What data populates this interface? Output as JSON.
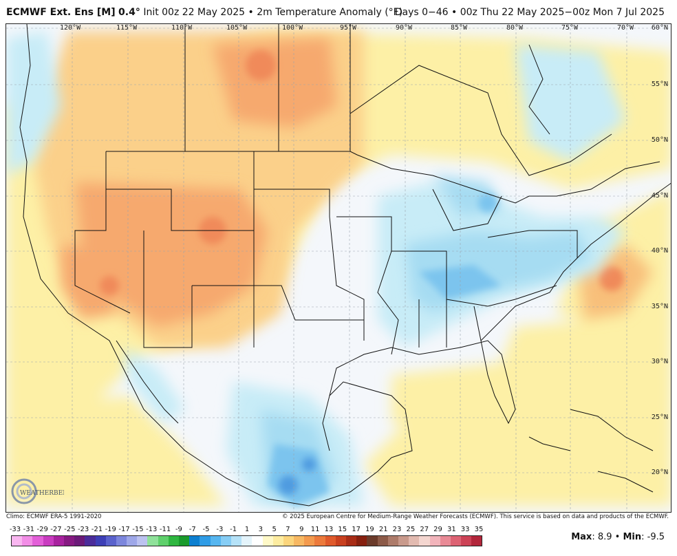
{
  "header": {
    "model": "ECMWF Ext. Ens [M]",
    "resolution": "0.4°",
    "init": "Init 00z 22 May 2025",
    "separator": "•",
    "field": "2m Temperature Anomaly (°F)",
    "range": "Days 0−46 • 00z Thu 22 May 2025−00z Mon 7 Jul 2025"
  },
  "map": {
    "longitude_labels": [
      "120°W",
      "115°W",
      "110°W",
      "105°W",
      "100°W",
      "95°W",
      "90°W",
      "85°W",
      "80°W",
      "75°W",
      "70°W"
    ],
    "latitude_labels": [
      "60°N",
      "55°N",
      "50°N",
      "45°N",
      "40°N",
      "35°N",
      "30°N",
      "25°N",
      "20°N"
    ],
    "logo_text": "WEATHERBELL",
    "colors": {
      "warm_light": "#fdf0a6",
      "warm_mid": "#fbd08a",
      "warm_strong": "#f6a96e",
      "warm_deep": "#f08a5a",
      "cool_light": "#c8ecf7",
      "cool_mid": "#a6dcf2",
      "cool_strong": "#7cc4ee",
      "cool_deep": "#4f9be0",
      "neutral": "#f4f7fb",
      "border": "#111111"
    }
  },
  "footer": {
    "climo": "Climo: ECMWF ERA-5 1991-2020",
    "copyright": "© 2025 European Centre for Medium-Range Weather Forecasts (ECMWF). This service is based on data and products of the ECMWF."
  },
  "colorbar": {
    "ticks": [
      "-33",
      "-31",
      "-29",
      "-27",
      "-25",
      "-23",
      "-21",
      "-19",
      "-17",
      "-15",
      "-13",
      "-11",
      "-9",
      "-7",
      "-5",
      "-3",
      "-1",
      "1",
      "3",
      "5",
      "7",
      "9",
      "11",
      "13",
      "15",
      "17",
      "19",
      "21",
      "23",
      "25",
      "27",
      "29",
      "31",
      "33",
      "35"
    ],
    "swatches": [
      "#f9b6f0",
      "#f28de6",
      "#e35fd8",
      "#c93cc0",
      "#a8229f",
      "#861a82",
      "#6b1a78",
      "#4b2c9a",
      "#3d3fb6",
      "#5a62cc",
      "#7c86dc",
      "#9ea7e8",
      "#bcc2f0",
      "#8fe19a",
      "#5fd06c",
      "#2fb640",
      "#1a9a2c",
      "#0d7fd0",
      "#2f9ce6",
      "#56b6f0",
      "#86cdf5",
      "#b5e2f8",
      "#e4f4fb",
      "#ffffff",
      "#fff9c8",
      "#fdeca0",
      "#fbd57c",
      "#f7b863",
      "#f39a4e",
      "#ec7a3c",
      "#df5a2c",
      "#c8401f",
      "#a82c16",
      "#86200f",
      "#6b3b2b",
      "#8c5a48",
      "#ad7b6a",
      "#c99a8c",
      "#e2bab0",
      "#f4d6d0",
      "#f2b4bb",
      "#e98a96",
      "#dd6273",
      "#cc4256",
      "#b2263b"
    ],
    "max_label": "Max",
    "max_value": "8.9",
    "min_label": "Min",
    "min_value": "-9.5"
  }
}
